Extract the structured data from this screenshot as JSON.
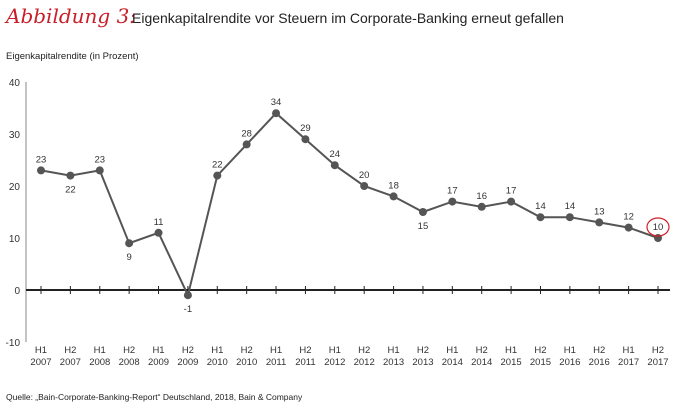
{
  "header": {
    "script_label": "Abbildung 3:",
    "title": "Eigenkapitalrendite vor Steuern im Corporate-Banking erneut gefallen"
  },
  "footer": {
    "source": "Quelle: „Bain-Corporate-Banking-Report“ Deutschland, 2018, Bain & Company"
  },
  "chart_data": {
    "type": "line",
    "title": "Eigenkapitalrendite vor Steuern im Corporate-Banking erneut gefallen",
    "ylabel": "Eigenkapitalrendite (in Prozent)",
    "xlabel": "",
    "ylim": [
      -10,
      40
    ],
    "yticks": [
      -10,
      0,
      10,
      20,
      30,
      40
    ],
    "grid": false,
    "categories": [
      [
        "H1",
        "2007"
      ],
      [
        "H2",
        "2007"
      ],
      [
        "H1",
        "2008"
      ],
      [
        "H2",
        "2008"
      ],
      [
        "H1",
        "2009"
      ],
      [
        "H2",
        "2009"
      ],
      [
        "H1",
        "2010"
      ],
      [
        "H2",
        "2010"
      ],
      [
        "H1",
        "2011"
      ],
      [
        "H2",
        "2011"
      ],
      [
        "H1",
        "2012"
      ],
      [
        "H2",
        "2012"
      ],
      [
        "H1",
        "2013"
      ],
      [
        "H2",
        "2013"
      ],
      [
        "H1",
        "2014"
      ],
      [
        "H2",
        "2014"
      ],
      [
        "H1",
        "2015"
      ],
      [
        "H2",
        "2015"
      ],
      [
        "H1",
        "2016"
      ],
      [
        "H2",
        "2016"
      ],
      [
        "H1",
        "2017"
      ],
      [
        "H2",
        "2017"
      ]
    ],
    "values": [
      23,
      22,
      23,
      9,
      11,
      -1,
      22,
      28,
      34,
      29,
      24,
      20,
      18,
      15,
      17,
      16,
      17,
      14,
      14,
      13,
      12,
      10
    ],
    "label_below": [
      false,
      true,
      false,
      true,
      false,
      true,
      false,
      false,
      false,
      false,
      false,
      false,
      false,
      true,
      false,
      false,
      false,
      false,
      false,
      false,
      false,
      false
    ],
    "highlight_index": 21,
    "colors": {
      "line": "#555555",
      "highlight": "#d0202a",
      "accent": "#c8202a"
    }
  }
}
